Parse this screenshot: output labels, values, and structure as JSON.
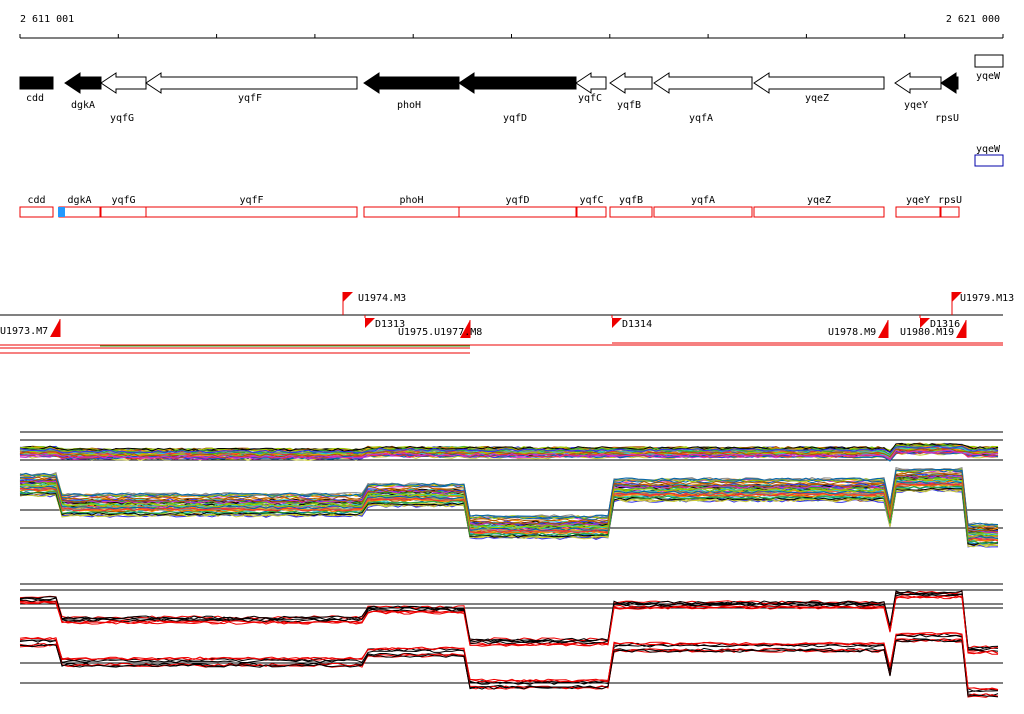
{
  "axis": {
    "start": "2 611 001",
    "end": "2 621 000"
  },
  "genes": [
    "cdd",
    "dgkA",
    "yqfG",
    "yqfF",
    "phoH",
    "yqfD",
    "yqfC",
    "yqfB",
    "yqfA",
    "yqeZ",
    "yqeY",
    "rpsU",
    "yqeW"
  ],
  "features": [
    "cdd",
    "dgkA",
    "yqfG",
    "yqfF",
    "phoH",
    "yqfD",
    "yqfC",
    "yqfB",
    "yqfA",
    "yqeZ",
    "yqeY",
    "rpsU",
    "yqeW"
  ],
  "units": [
    "U1974.M3",
    "U1973.M7",
    "D1313",
    "U1975.U1977.M8",
    "D1314",
    "U1978.M9",
    "D1316",
    "U1980.M19",
    "U1979.M13"
  ]
}
